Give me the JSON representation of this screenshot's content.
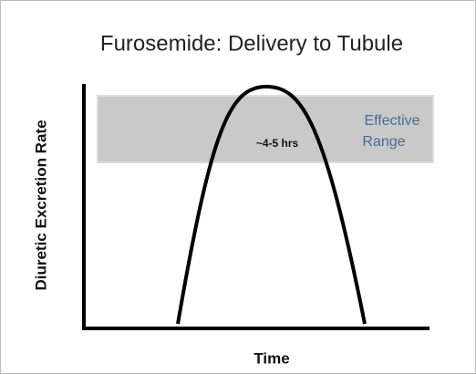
{
  "title": "Furosemide: Delivery to Tubule",
  "y_axis_label": "Diuretic Excretion Rate",
  "x_axis_label": "Time",
  "annotation": "~4-5 hrs",
  "effective_range": {
    "lines": [
      "Effective",
      "Range"
    ]
  }
}
